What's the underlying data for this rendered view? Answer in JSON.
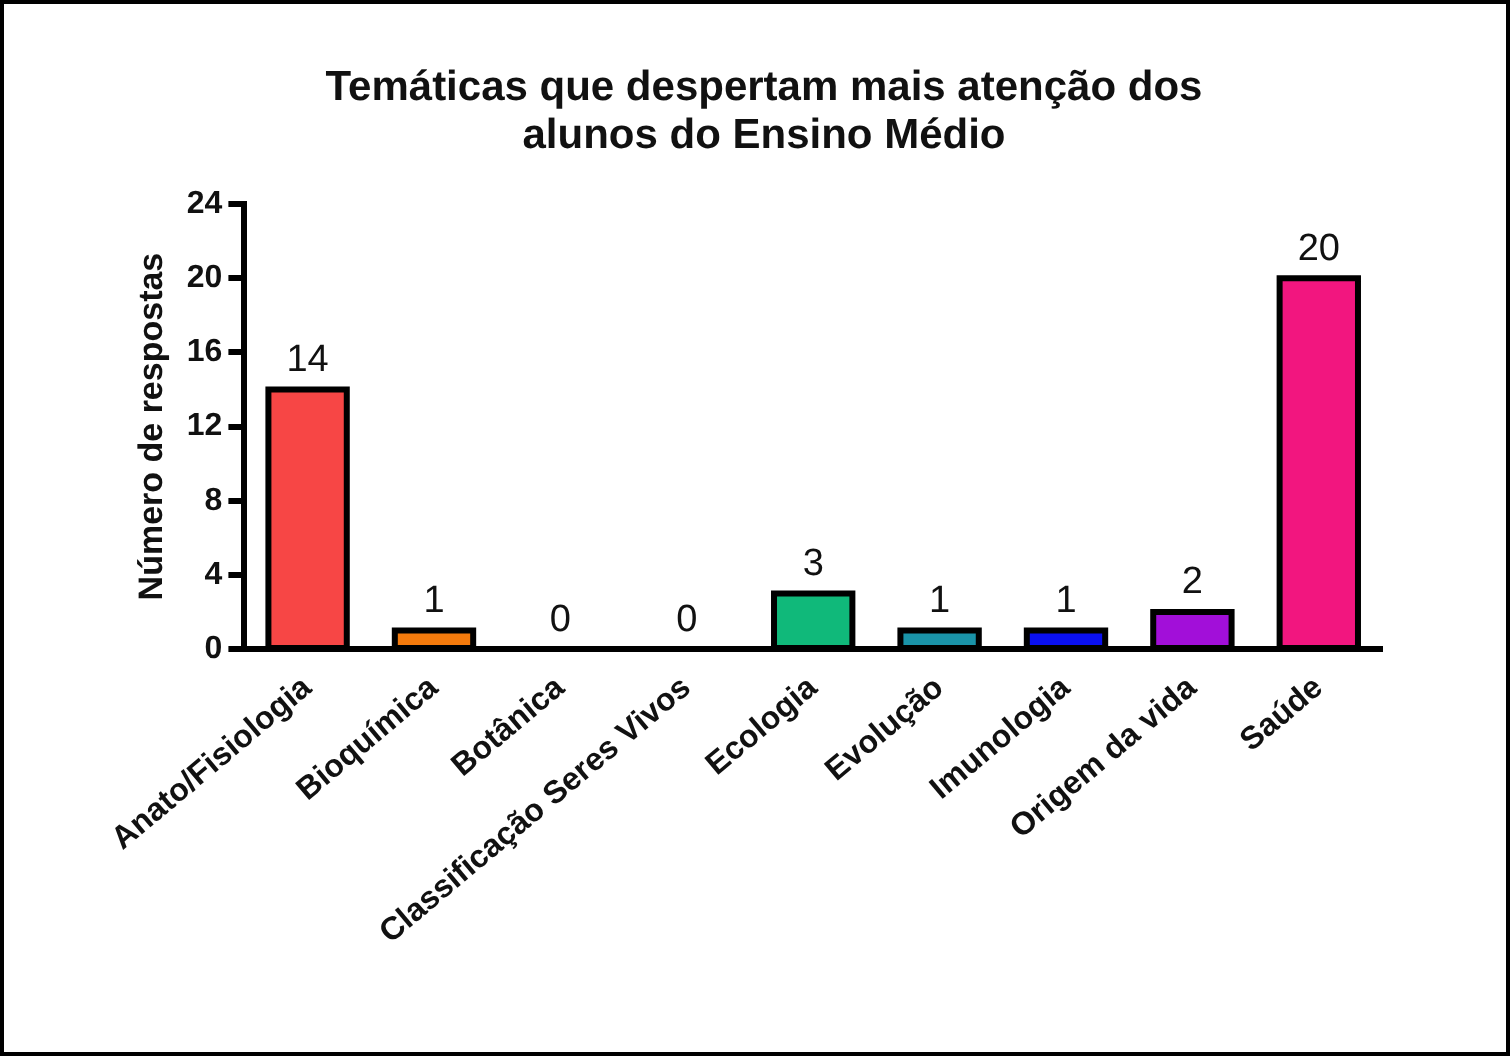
{
  "chart_data": {
    "type": "bar",
    "title": "Temáticas que despertam mais atenção dos alunos do Ensino Médio",
    "ylabel": "Número de respostas",
    "categories": [
      "Anato/Fisiologia",
      "Bioquímica",
      "Botânica",
      "Classificação Seres Vivos",
      "Ecologia",
      "Evolução",
      "Imunologia",
      "Origem da vida",
      "Saúde"
    ],
    "values": [
      14,
      1,
      0,
      0,
      3,
      1,
      1,
      2,
      20
    ],
    "colors": [
      "#f74645",
      "#f47a0c",
      "#7f7f7f",
      "#7f7f7f",
      "#10b97a",
      "#1a93a8",
      "#0a10f0",
      "#a20fd9",
      "#f2167f"
    ],
    "ylim": [
      0,
      24
    ],
    "yticks": [
      0,
      4,
      8,
      12,
      16,
      20,
      24
    ],
    "grid": false,
    "legend": false,
    "data_labels": true
  }
}
